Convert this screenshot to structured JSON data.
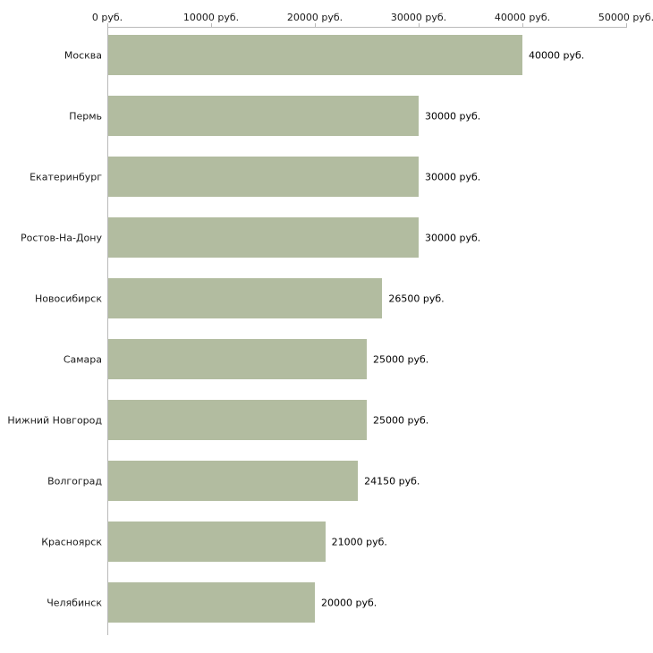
{
  "chart_data": {
    "type": "bar",
    "orientation": "horizontal",
    "title": "",
    "xlabel": "",
    "ylabel": "",
    "categories": [
      "Москва",
      "Пермь",
      "Екатеринбург",
      "Ростов-На-Дону",
      "Новосибирск",
      "Самара",
      "Нижний Новгород",
      "Волгоград",
      "Красноярск",
      "Челябинск"
    ],
    "values": [
      40000,
      30000,
      30000,
      30000,
      26500,
      25000,
      25000,
      24150,
      21000,
      20000
    ],
    "value_labels": [
      "40000 руб.",
      "30000 руб.",
      "30000 руб.",
      "30000 руб.",
      "26500 руб.",
      "25000 руб.",
      "25000 руб.",
      "24150 руб.",
      "21000 руб.",
      "20000 руб."
    ],
    "x_ticks": [
      0,
      10000,
      20000,
      30000,
      40000,
      50000
    ],
    "x_tick_labels": [
      "0 руб.",
      "10000 руб.",
      "20000 руб.",
      "30000 руб.",
      "40000 руб.",
      "50000 руб."
    ],
    "xlim": [
      0,
      50000
    ],
    "grid": false,
    "legend": false,
    "axis_position": "top",
    "bar_color": "#b2bca0",
    "axis_color": "#b9b9b9",
    "text_color": "#1a1a1a"
  }
}
